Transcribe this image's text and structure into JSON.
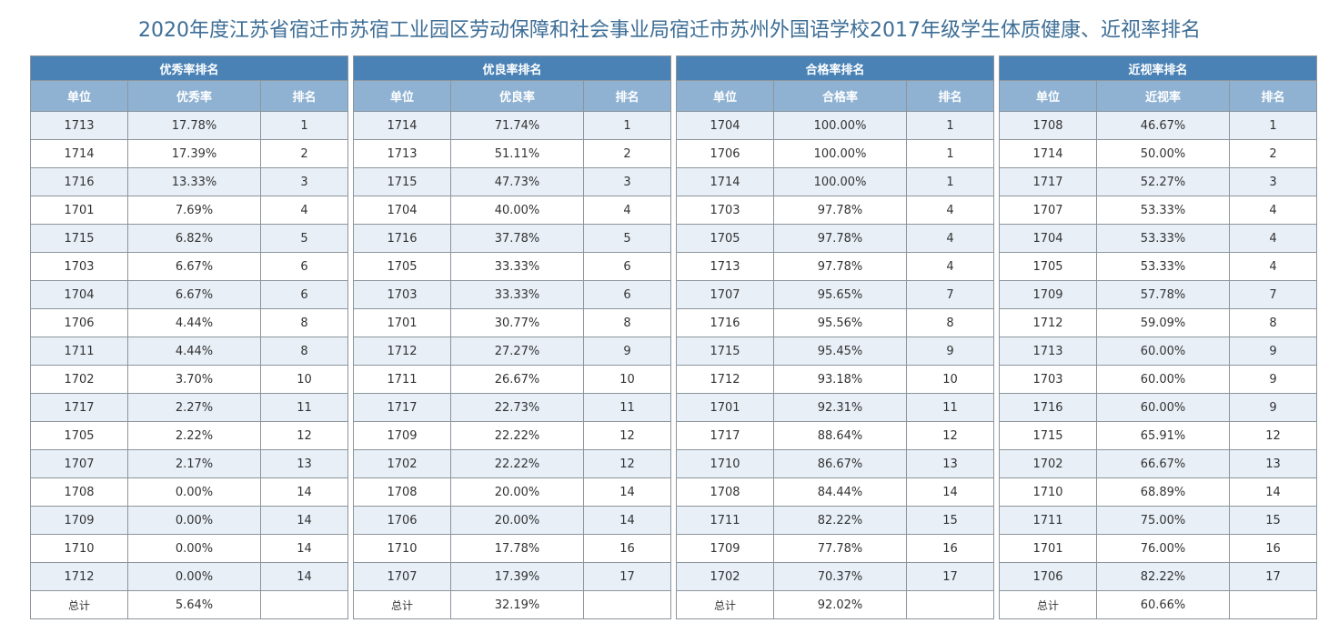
{
  "title": "2020年度江苏省宿迁市苏宿工业园区劳动保障和社会事业局宿迁市苏州外国语学校2017年级学生体质健康、近视率排名",
  "tables": [
    {
      "caption": "优秀率排名",
      "headers": [
        "单位",
        "优秀率",
        "排名"
      ],
      "rows": [
        [
          "1713",
          "17.78%",
          "1"
        ],
        [
          "1714",
          "17.39%",
          "2"
        ],
        [
          "1716",
          "13.33%",
          "3"
        ],
        [
          "1701",
          "7.69%",
          "4"
        ],
        [
          "1715",
          "6.82%",
          "5"
        ],
        [
          "1703",
          "6.67%",
          "6"
        ],
        [
          "1704",
          "6.67%",
          "6"
        ],
        [
          "1706",
          "4.44%",
          "8"
        ],
        [
          "1711",
          "4.44%",
          "8"
        ],
        [
          "1702",
          "3.70%",
          "10"
        ],
        [
          "1717",
          "2.27%",
          "11"
        ],
        [
          "1705",
          "2.22%",
          "12"
        ],
        [
          "1707",
          "2.17%",
          "13"
        ],
        [
          "1708",
          "0.00%",
          "14"
        ],
        [
          "1709",
          "0.00%",
          "14"
        ],
        [
          "1710",
          "0.00%",
          "14"
        ],
        [
          "1712",
          "0.00%",
          "14"
        ]
      ],
      "total": [
        "总计",
        "5.64%",
        ""
      ]
    },
    {
      "caption": "优良率排名",
      "headers": [
        "单位",
        "优良率",
        "排名"
      ],
      "rows": [
        [
          "1714",
          "71.74%",
          "1"
        ],
        [
          "1713",
          "51.11%",
          "2"
        ],
        [
          "1715",
          "47.73%",
          "3"
        ],
        [
          "1704",
          "40.00%",
          "4"
        ],
        [
          "1716",
          "37.78%",
          "5"
        ],
        [
          "1705",
          "33.33%",
          "6"
        ],
        [
          "1703",
          "33.33%",
          "6"
        ],
        [
          "1701",
          "30.77%",
          "8"
        ],
        [
          "1712",
          "27.27%",
          "9"
        ],
        [
          "1711",
          "26.67%",
          "10"
        ],
        [
          "1717",
          "22.73%",
          "11"
        ],
        [
          "1709",
          "22.22%",
          "12"
        ],
        [
          "1702",
          "22.22%",
          "12"
        ],
        [
          "1708",
          "20.00%",
          "14"
        ],
        [
          "1706",
          "20.00%",
          "14"
        ],
        [
          "1710",
          "17.78%",
          "16"
        ],
        [
          "1707",
          "17.39%",
          "17"
        ]
      ],
      "total": [
        "总计",
        "32.19%",
        ""
      ]
    },
    {
      "caption": "合格率排名",
      "headers": [
        "单位",
        "合格率",
        "排名"
      ],
      "rows": [
        [
          "1704",
          "100.00%",
          "1"
        ],
        [
          "1706",
          "100.00%",
          "1"
        ],
        [
          "1714",
          "100.00%",
          "1"
        ],
        [
          "1703",
          "97.78%",
          "4"
        ],
        [
          "1705",
          "97.78%",
          "4"
        ],
        [
          "1713",
          "97.78%",
          "4"
        ],
        [
          "1707",
          "95.65%",
          "7"
        ],
        [
          "1716",
          "95.56%",
          "8"
        ],
        [
          "1715",
          "95.45%",
          "9"
        ],
        [
          "1712",
          "93.18%",
          "10"
        ],
        [
          "1701",
          "92.31%",
          "11"
        ],
        [
          "1717",
          "88.64%",
          "12"
        ],
        [
          "1710",
          "86.67%",
          "13"
        ],
        [
          "1708",
          "84.44%",
          "14"
        ],
        [
          "1711",
          "82.22%",
          "15"
        ],
        [
          "1709",
          "77.78%",
          "16"
        ],
        [
          "1702",
          "70.37%",
          "17"
        ]
      ],
      "total": [
        "总计",
        "92.02%",
        ""
      ]
    },
    {
      "caption": "近视率排名",
      "headers": [
        "单位",
        "近视率",
        "排名"
      ],
      "rows": [
        [
          "1708",
          "46.67%",
          "1"
        ],
        [
          "1714",
          "50.00%",
          "2"
        ],
        [
          "1717",
          "52.27%",
          "3"
        ],
        [
          "1707",
          "53.33%",
          "4"
        ],
        [
          "1704",
          "53.33%",
          "4"
        ],
        [
          "1705",
          "53.33%",
          "4"
        ],
        [
          "1709",
          "57.78%",
          "7"
        ],
        [
          "1712",
          "59.09%",
          "8"
        ],
        [
          "1713",
          "60.00%",
          "9"
        ],
        [
          "1703",
          "60.00%",
          "9"
        ],
        [
          "1716",
          "60.00%",
          "9"
        ],
        [
          "1715",
          "65.91%",
          "12"
        ],
        [
          "1702",
          "66.67%",
          "13"
        ],
        [
          "1710",
          "68.89%",
          "14"
        ],
        [
          "1711",
          "75.00%",
          "15"
        ],
        [
          "1701",
          "76.00%",
          "16"
        ],
        [
          "1706",
          "82.22%",
          "17"
        ]
      ],
      "total": [
        "总计",
        "60.66%",
        ""
      ]
    }
  ]
}
